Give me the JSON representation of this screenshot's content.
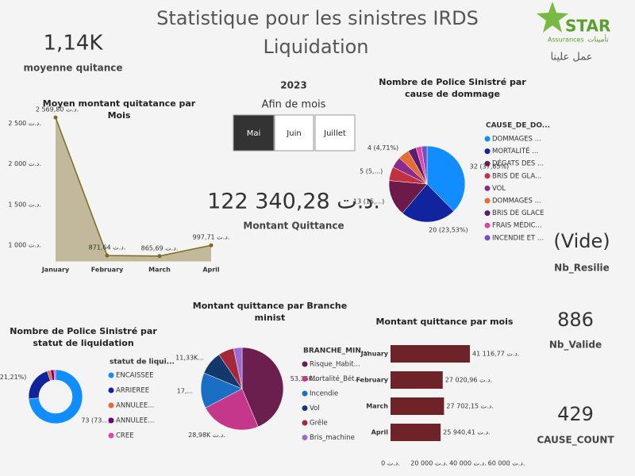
{
  "header": {
    "title": "Statistique pour les sinistres IRDS",
    "subtitle": "Liquidation"
  },
  "logo": {
    "name": "STAR",
    "sub": "Assurances",
    "arabic": "تأمينات",
    "slogan": "عمل علينا"
  },
  "slicer": {
    "year": "2023",
    "label": "Afin de mois",
    "options": [
      "Mai",
      "Juin",
      "Juillet"
    ],
    "selected": 0
  },
  "kpis": [
    {
      "value": "1,14K",
      "label": "moyenne quitance"
    },
    {
      "value": "122 340,28 د.ت.",
      "label": "Montant Quittance"
    },
    {
      "value": "(Vide)",
      "label": "Nb_Resilie"
    },
    {
      "value": "886",
      "label": "Nb_Valide"
    },
    {
      "value": "429",
      "label": "CAUSE_COUNT"
    }
  ],
  "chart_data": [
    {
      "type": "area",
      "title": "Moyen montant quitatance par Mois",
      "categories": [
        "January",
        "February",
        "March",
        "April"
      ],
      "values": [
        2569.8,
        871.64,
        865.69,
        997.71
      ],
      "value_labels": [
        "2 569,80 د.ت.",
        "871,64 د.ت.",
        "865,69 د.ت.",
        "997,71 د.ت."
      ],
      "color": "#7a6b1f",
      "fill": "#bcb394",
      "ylim": [
        800,
        2600
      ],
      "yticks": [
        {
          "value": 1000,
          "label": "1 000 د.ت."
        },
        {
          "value": 1500,
          "label": "1 500 د.ت."
        },
        {
          "value": 2000,
          "label": "2 000 د.ت."
        },
        {
          "value": 2500,
          "label": "2 500 د.ت."
        }
      ],
      "grid": false
    },
    {
      "type": "pie",
      "title": "Nombre de Police Sinistré par cause de dommage",
      "legend_title": "CAUSE_DE_DO...",
      "categories": [
        "DOMMAGES ...",
        "MORTALITÉ ...",
        "DÉGATS DES ...",
        "BRIS DE GLA...",
        "VOL",
        "DOMMAGES ...",
        "BRIS DE GLACE",
        "FRAIS MÉDIC...",
        "INCENDIE ET ..."
      ],
      "values": [
        32,
        20,
        13,
        5,
        4,
        4,
        3,
        2,
        2
      ],
      "value_labels": [
        "32 (37,65%)",
        "20 (23,53%)",
        "13 (15,...)",
        "5 (5,...)",
        null,
        "4 (4,71%)",
        null,
        null,
        null
      ],
      "colors": [
        "#118dff",
        "#12239e",
        "#6b1a4a",
        "#c3303f",
        "#8b2c8c",
        "#e66c37",
        "#5a1e6e",
        "#e044a7",
        "#744ec2"
      ]
    },
    {
      "type": "donut",
      "title": "Nombre de Police Sinistré par statut de liquidation",
      "legend_title": "statut de liqui...",
      "categories": [
        "ENCAISSEE",
        "ARRIEREE",
        "ANNULEE...",
        "ANNULEE...",
        "CREE"
      ],
      "values": [
        73,
        21,
        2,
        2,
        1
      ],
      "value_labels": [
        "73 (73...)",
        "21 (21,21%)",
        null,
        null,
        null
      ],
      "colors": [
        "#118dff",
        "#12239e",
        "#e66c37",
        "#6b007b",
        "#e044a7"
      ]
    },
    {
      "type": "pie",
      "title": "Montant quittance par Branche minist",
      "legend_title": "BRANCHE_MIN...",
      "categories": [
        "Risque_Habit...",
        "Mortalité_Bét...",
        "Incendie",
        "Vol",
        "Grêle",
        "Bris_machine"
      ],
      "values": [
        53.35,
        28.98,
        17,
        11.33,
        7.5,
        4.1
      ],
      "value_labels": [
        "53,35K...",
        "28,98K د.ت.",
        "17,...",
        "11,33K...",
        null,
        null
      ],
      "colors": [
        "#6b1f4f",
        "#c4378b",
        "#1a6fc4",
        "#14386b",
        "#a3293a",
        "#9b6bd6"
      ]
    },
    {
      "type": "hbar",
      "title": "Montant quittance par mois",
      "categories": [
        "January",
        "February",
        "March",
        "April"
      ],
      "values": [
        41116.77,
        27020.96,
        27702.15,
        25940.41
      ],
      "value_labels": [
        "41 116,77 د.ت.",
        "27 020,96 د.ت.",
        "27 702,15 د.ت.",
        "25 940,41 د.ت."
      ],
      "color": "#6e2328",
      "xlim": [
        0,
        60000
      ],
      "xticks": [
        {
          "value": 0,
          "label": "0 د.ت."
        },
        {
          "value": 20000,
          "label": "20 000 د.ت."
        },
        {
          "value": 40000,
          "label": "40 000 د.ت."
        },
        {
          "value": 60000,
          "label": "60 000 د.ت."
        }
      ]
    }
  ]
}
